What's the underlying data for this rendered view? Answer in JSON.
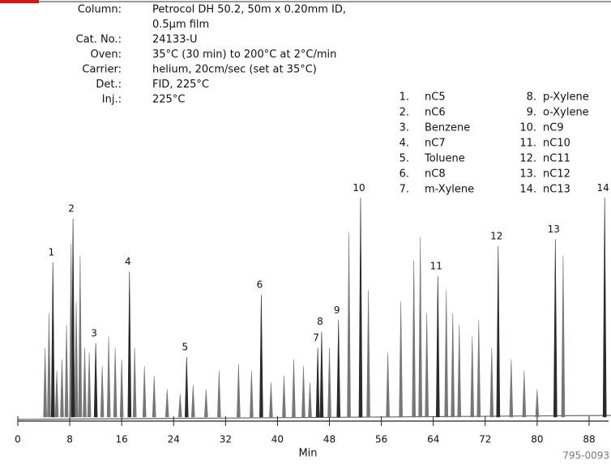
{
  "conditions": [
    {
      "label": "Column:",
      "lines": [
        "Petrocol DH 50.2, 50m x 0.20mm ID,",
        "0.5µm film"
      ]
    },
    {
      "label": "Cat. No.:",
      "lines": [
        "24133-U"
      ]
    },
    {
      "label": "Oven:",
      "lines": [
        "35°C (30 min) to 200°C at 2°C/min"
      ]
    },
    {
      "label": "Carrier:",
      "lines": [
        "helium, 20cm/sec (set at 35°C)"
      ]
    },
    {
      "label": "Det.:",
      "lines": [
        "FID, 225°C"
      ]
    },
    {
      "label": "Inj.:",
      "lines": [
        "225°C"
      ]
    }
  ],
  "peak_ids": [
    {
      "number": "1.",
      "name": "nC5"
    },
    {
      "number": "2.",
      "name": "nC6"
    },
    {
      "number": "3.",
      "name": "Benzene"
    },
    {
      "number": "4.",
      "name": "nC7"
    },
    {
      "number": "5.",
      "name": "Toluene"
    },
    {
      "number": "6.",
      "name": "nC8"
    },
    {
      "number": "7.",
      "name": "m-Xylene"
    },
    {
      "number": "8.",
      "name": "p-Xylene"
    },
    {
      "number": "9.",
      "name": "o-Xylene"
    },
    {
      "number": "10.",
      "name": "nC9"
    },
    {
      "number": "11.",
      "name": "nC10"
    },
    {
      "number": "12.",
      "name": "nC11"
    },
    {
      "number": "13.",
      "name": "nC12"
    },
    {
      "number": "14.",
      "name": "nC13"
    }
  ],
  "figure_code": "795-0093",
  "chart_data": {
    "type": "chromatogram",
    "x_label": "Min",
    "color": "#2a2a2a",
    "xlim": [
      0,
      91
    ],
    "xticks": [
      0,
      8,
      16,
      24,
      32,
      40,
      48,
      56,
      64,
      72,
      80,
      88
    ],
    "ylim": [
      0,
      100
    ],
    "peaks": {
      "labels": [
        "1",
        "2",
        "3",
        "4",
        "5",
        "6",
        "7",
        "8",
        "9",
        "10",
        "11",
        "12",
        "13",
        "14"
      ],
      "x": [
        5.4,
        8.5,
        12,
        17.2,
        26,
        37.5,
        46.2,
        46.8,
        49.4,
        52.8,
        64.7,
        74,
        82.8,
        90.4
      ],
      "values": [
        67,
        86,
        32,
        63,
        26,
        53,
        30,
        37,
        42,
        95,
        61,
        74,
        77,
        95
      ]
    },
    "other_peaks": {
      "x": [
        4.2,
        4.8,
        6,
        6.8,
        7.5,
        8.2,
        9,
        9.6,
        10.3,
        11,
        13,
        14,
        15,
        16,
        18,
        19.5,
        21,
        23,
        25,
        27,
        29,
        31,
        34,
        36,
        39,
        41,
        42.5,
        44,
        45,
        48,
        51,
        54,
        57,
        59,
        61,
        62,
        63,
        66,
        67,
        68,
        70,
        71,
        73,
        76,
        78,
        80,
        84
      ],
      "values": [
        30,
        45,
        20,
        25,
        40,
        75,
        50,
        70,
        30,
        28,
        22,
        35,
        30,
        25,
        30,
        22,
        18,
        12,
        10,
        14,
        12,
        20,
        23,
        20,
        15,
        18,
        25,
        22,
        15,
        30,
        80,
        55,
        28,
        50,
        68,
        78,
        45,
        55,
        45,
        40,
        35,
        42,
        30,
        25,
        20,
        12,
        70
      ]
    }
  }
}
